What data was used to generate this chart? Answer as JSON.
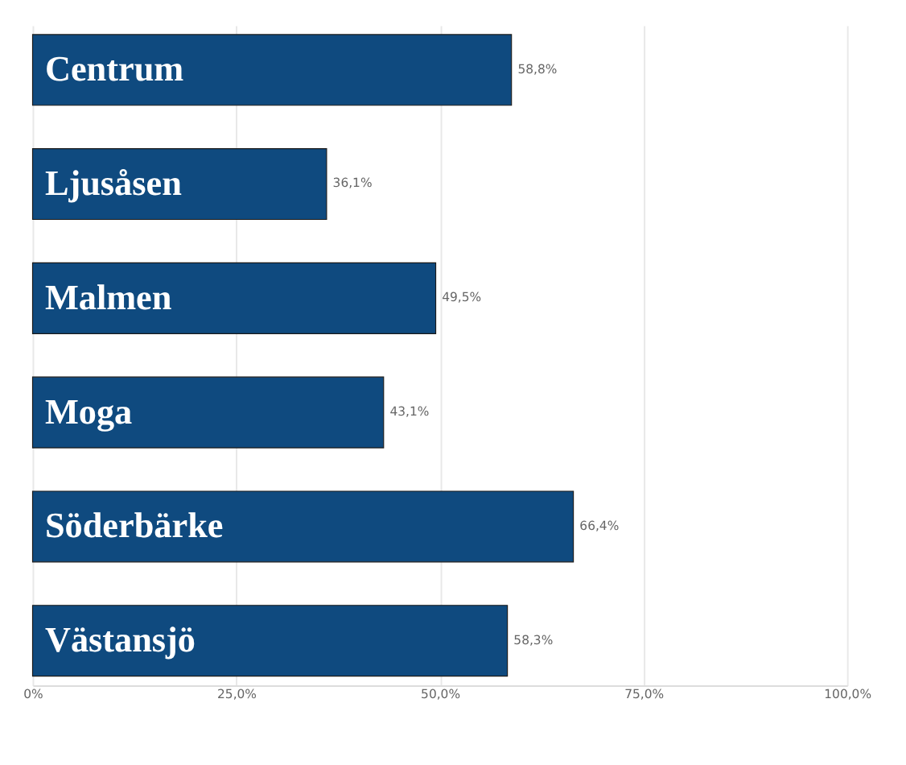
{
  "chart_data": {
    "type": "bar",
    "orientation": "horizontal",
    "categories": [
      "Centrum",
      "Ljusåsen",
      "Malmen",
      "Moga",
      "Söderbärke",
      "Västansjö"
    ],
    "values": [
      58.8,
      36.1,
      49.5,
      43.1,
      66.4,
      58.3
    ],
    "value_labels": [
      "58,8%",
      "36,1%",
      "49,5%",
      "43,1%",
      "66,4%",
      "58,3%"
    ],
    "color": "#0f4a7f",
    "xlim": [
      0,
      100
    ],
    "xticks": [
      {
        "value": 0,
        "label": "0%"
      },
      {
        "value": 25,
        "label": "25,0%"
      },
      {
        "value": 50,
        "label": "50,0%"
      },
      {
        "value": 75,
        "label": "75,0%"
      },
      {
        "value": 100,
        "label": "100,0%"
      }
    ],
    "grid": "x"
  }
}
